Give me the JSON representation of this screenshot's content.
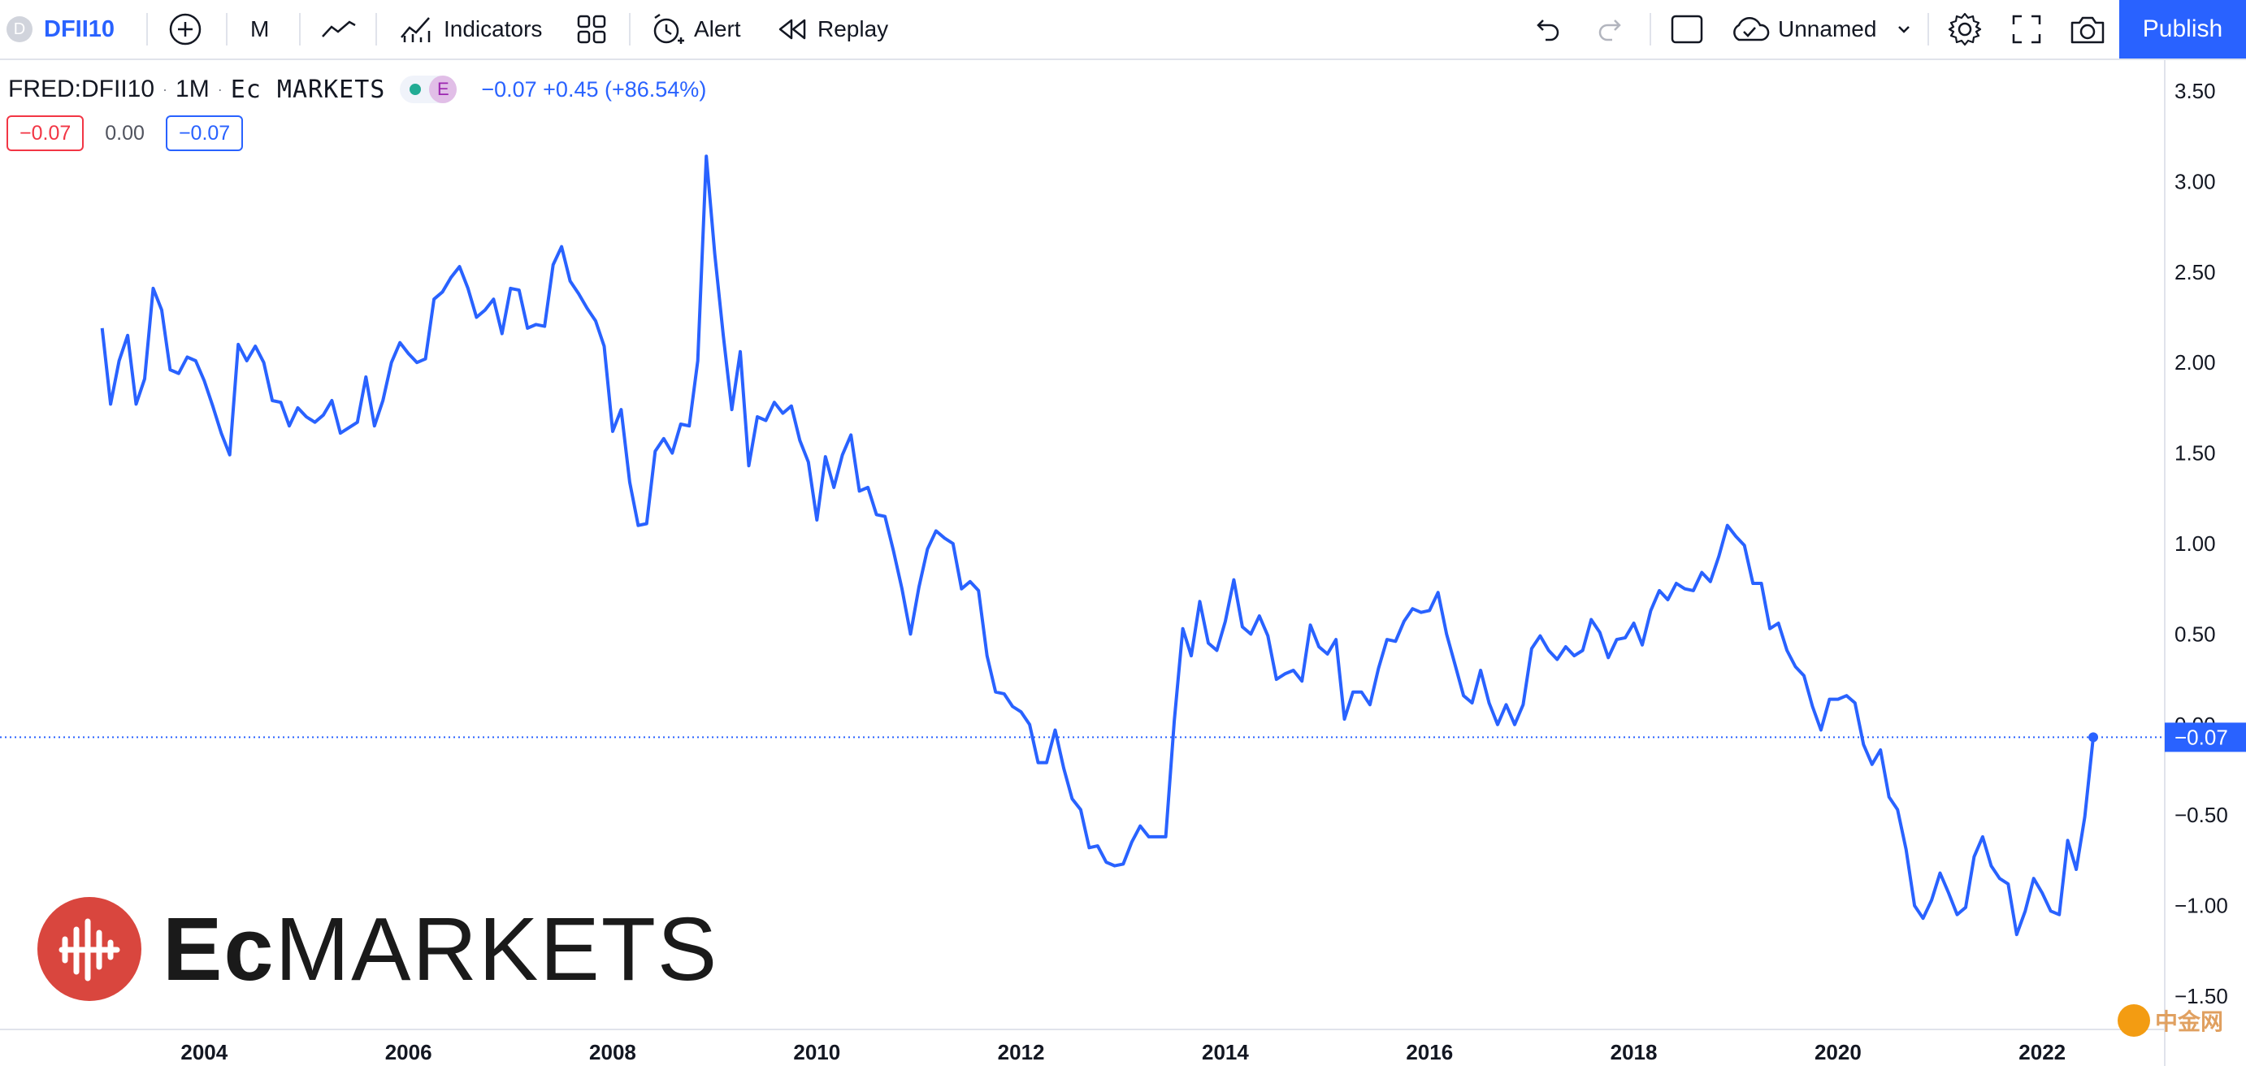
{
  "toolbar": {
    "symbol_initial": "D",
    "symbol": "DFII10",
    "interval": "M",
    "indicators_label": "Indicators",
    "alert_label": "Alert",
    "replay_label": "Replay",
    "layout_name": "Unnamed",
    "publish_label": "Publish"
  },
  "legend": {
    "source": "FRED:DFII10",
    "interval": "1M",
    "exchange": "Ec MARKETS",
    "badge": "E",
    "values": "−0.07  +0.45 (+86.54%)",
    "pill_left": "−0.07",
    "pill_mid": "0.00",
    "pill_right": "−0.07"
  },
  "logo": {
    "brand_bold": "Ec",
    "brand_rest": "MARKETS"
  },
  "corner_watermark": "中金网",
  "colors": {
    "line": "#2962ff",
    "accent": "#2962ff",
    "negative": "#f23645",
    "axis_text": "#131722"
  },
  "chart_data": {
    "type": "line",
    "title": "",
    "xlabel": "",
    "ylabel": "",
    "ylim": [
      -1.5,
      3.5
    ],
    "xlim": [
      2002.0,
      2023.2
    ],
    "y_ticks": [
      "3.50",
      "3.00",
      "2.50",
      "2.00",
      "1.50",
      "1.00",
      "0.50",
      "0.00",
      "−0.50",
      "−1.00",
      "−1.50"
    ],
    "x_ticks": [
      "2004",
      "2006",
      "2008",
      "2010",
      "2012",
      "2014",
      "2016",
      "2018",
      "2020",
      "2022"
    ],
    "last_value_label": "−0.07",
    "last_value": -0.07,
    "grid": false,
    "series": [
      {
        "x_start": 2003.0,
        "step_months": 1,
        "values": [
          2.19,
          1.77,
          2.01,
          2.15,
          1.77,
          1.91,
          2.41,
          2.29,
          1.96,
          1.94,
          2.03,
          2.01,
          1.9,
          1.76,
          1.61,
          1.49,
          2.1,
          2.01,
          2.09,
          2.0,
          1.79,
          1.78,
          1.65,
          1.75,
          1.7,
          1.67,
          1.71,
          1.79,
          1.61,
          1.64,
          1.67,
          1.92,
          1.65,
          1.79,
          2.0,
          2.11,
          2.05,
          2.0,
          2.02,
          2.35,
          2.39,
          2.47,
          2.53,
          2.41,
          2.25,
          2.29,
          2.35,
          2.16,
          2.41,
          2.4,
          2.19,
          2.21,
          2.2,
          2.54,
          2.64,
          2.45,
          2.38,
          2.3,
          2.23,
          2.09,
          1.62,
          1.74,
          1.34,
          1.1,
          1.11,
          1.51,
          1.58,
          1.5,
          1.66,
          1.65,
          2.01,
          3.14,
          2.6,
          2.15,
          1.74,
          2.06,
          1.43,
          1.7,
          1.68,
          1.78,
          1.72,
          1.76,
          1.57,
          1.45,
          1.13,
          1.48,
          1.31,
          1.49,
          1.6,
          1.29,
          1.31,
          1.16,
          1.15,
          0.96,
          0.75,
          0.5,
          0.76,
          0.97,
          1.07,
          1.03,
          1.0,
          0.75,
          0.79,
          0.74,
          0.38,
          0.18,
          0.17,
          0.1,
          0.07,
          0.0,
          -0.21,
          -0.21,
          -0.03,
          -0.24,
          -0.41,
          -0.47,
          -0.68,
          -0.67,
          -0.76,
          -0.78,
          -0.77,
          -0.65,
          -0.56,
          -0.62,
          -0.62,
          -0.62,
          0.02,
          0.53,
          0.38,
          0.68,
          0.45,
          0.41,
          0.57,
          0.8,
          0.54,
          0.5,
          0.6,
          0.49,
          0.25,
          0.28,
          0.3,
          0.24,
          0.55,
          0.43,
          0.39,
          0.47,
          0.03,
          0.18,
          0.18,
          0.11,
          0.31,
          0.47,
          0.46,
          0.57,
          0.64,
          0.62,
          0.63,
          0.73,
          0.5,
          0.33,
          0.16,
          0.12,
          0.3,
          0.12,
          0.0,
          0.11,
          0.0,
          0.11,
          0.42,
          0.49,
          0.41,
          0.36,
          0.43,
          0.38,
          0.41,
          0.58,
          0.51,
          0.37,
          0.47,
          0.48,
          0.56,
          0.44,
          0.63,
          0.74,
          0.69,
          0.78,
          0.75,
          0.74,
          0.84,
          0.79,
          0.93,
          1.1,
          1.04,
          0.99,
          0.78,
          0.78,
          0.53,
          0.56,
          0.41,
          0.32,
          0.27,
          0.1,
          -0.03,
          0.14,
          0.14,
          0.16,
          0.12,
          -0.11,
          -0.22,
          -0.14,
          -0.4,
          -0.47,
          -0.69,
          -1.0,
          -1.07,
          -0.97,
          -0.82,
          -0.93,
          -1.05,
          -1.01,
          -0.73,
          -0.62,
          -0.78,
          -0.85,
          -0.88,
          -1.16,
          -1.03,
          -0.85,
          -0.93,
          -1.03,
          -1.05,
          -0.64,
          -0.8,
          -0.51,
          -0.07
        ]
      }
    ]
  }
}
